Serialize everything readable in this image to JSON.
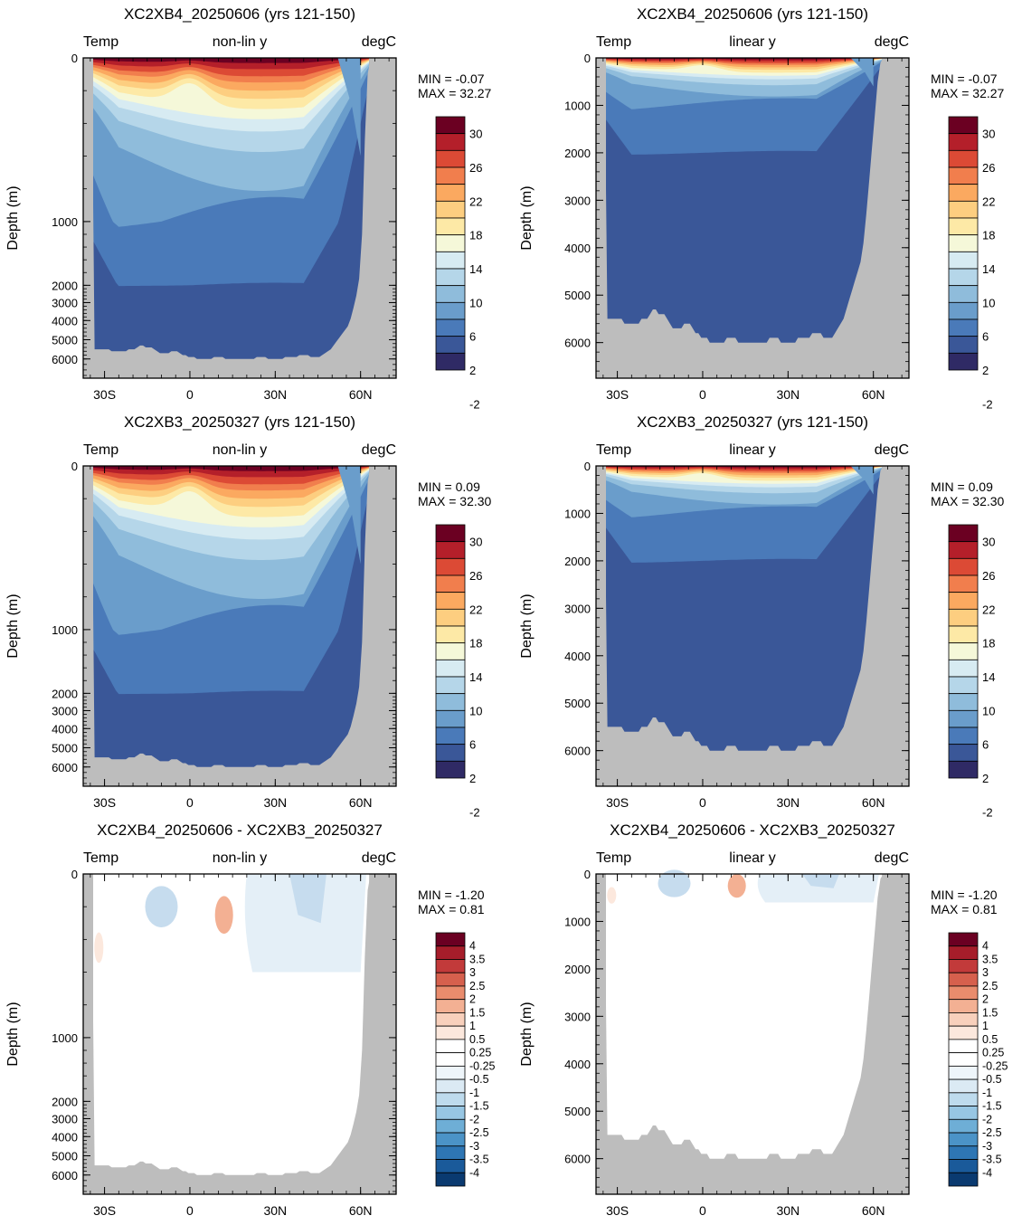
{
  "colors": {
    "land": "#bdbdbd",
    "temp_scale": [
      "#2f2a65",
      "#3a5798",
      "#4a7ab9",
      "#6a9dcb",
      "#8fbcdb",
      "#b5d6e9",
      "#d7ebf2",
      "#f5f8d9",
      "#fde9a6",
      "#fdce80",
      "#fba960",
      "#f17e4d",
      "#dc4a35",
      "#b41f2a",
      "#6b0022"
    ],
    "diff_scale": [
      "#0a3a70",
      "#1a5a9a",
      "#2e76b4",
      "#4b93c7",
      "#6eaed6",
      "#97c6e3",
      "#bedbed",
      "#dbeaf4",
      "#eef5fa",
      "#ffffff",
      "#ffffff",
      "#fce8dd",
      "#f8d0bc",
      "#f3b093",
      "#e98c6d",
      "#d6604d",
      "#c23a3a",
      "#a61d2a",
      "#6b0022"
    ]
  },
  "chart_data": [
    {
      "type": "contour",
      "title": "XC2XB4_20250606 (yrs 121-150)",
      "left_label": "Temp",
      "center_label": "non-lin y",
      "right_label": "degC",
      "ylabel": "Depth (m)",
      "y_scale": "non-linear",
      "y_ticks": [
        "0",
        "1000",
        "2000",
        "3000",
        "4000",
        "5000",
        "6000"
      ],
      "x_ticks": [
        "30S",
        "0",
        "30N",
        "60N"
      ],
      "min_text": "MIN =  -0.07",
      "max_text": "MAX =  32.27",
      "colorbar_labels": [
        "30",
        "26",
        "22",
        "18",
        "14",
        "10",
        "6",
        "2",
        "-2"
      ],
      "variable": "temperature",
      "min": -0.07,
      "max": 32.27
    },
    {
      "type": "contour",
      "title": "XC2XB4_20250606 (yrs 121-150)",
      "left_label": "Temp",
      "center_label": "linear y",
      "right_label": "degC",
      "ylabel": "Depth (m)",
      "y_scale": "linear",
      "y_ticks": [
        "0",
        "1000",
        "2000",
        "3000",
        "4000",
        "5000",
        "6000"
      ],
      "x_ticks": [
        "30S",
        "0",
        "30N",
        "60N"
      ],
      "min_text": "MIN =  -0.07",
      "max_text": "MAX =  32.27",
      "colorbar_labels": [
        "30",
        "26",
        "22",
        "18",
        "14",
        "10",
        "6",
        "2",
        "-2"
      ],
      "variable": "temperature",
      "min": -0.07,
      "max": 32.27
    },
    {
      "type": "contour",
      "title": "XC2XB3_20250327 (yrs 121-150)",
      "left_label": "Temp",
      "center_label": "non-lin y",
      "right_label": "degC",
      "ylabel": "Depth (m)",
      "y_scale": "non-linear",
      "y_ticks": [
        "0",
        "1000",
        "2000",
        "3000",
        "4000",
        "5000",
        "6000"
      ],
      "x_ticks": [
        "30S",
        "0",
        "30N",
        "60N"
      ],
      "min_text": "MIN =  0.09",
      "max_text": "MAX =  32.30",
      "colorbar_labels": [
        "30",
        "26",
        "22",
        "18",
        "14",
        "10",
        "6",
        "2",
        "-2"
      ],
      "variable": "temperature",
      "min": 0.09,
      "max": 32.3
    },
    {
      "type": "contour",
      "title": "XC2XB3_20250327 (yrs 121-150)",
      "left_label": "Temp",
      "center_label": "linear y",
      "right_label": "degC",
      "ylabel": "Depth (m)",
      "y_scale": "linear",
      "y_ticks": [
        "0",
        "1000",
        "2000",
        "3000",
        "4000",
        "5000",
        "6000"
      ],
      "x_ticks": [
        "30S",
        "0",
        "30N",
        "60N"
      ],
      "min_text": "MIN =  0.09",
      "max_text": "MAX =  32.30",
      "colorbar_labels": [
        "30",
        "26",
        "22",
        "18",
        "14",
        "10",
        "6",
        "2",
        "-2"
      ],
      "variable": "temperature",
      "min": 0.09,
      "max": 32.3
    },
    {
      "type": "contour",
      "title": "XC2XB4_20250606 - XC2XB3_20250327",
      "left_label": "Temp",
      "center_label": "non-lin y",
      "right_label": "degC",
      "ylabel": "Depth (m)",
      "y_scale": "non-linear",
      "y_ticks": [
        "0",
        "1000",
        "2000",
        "3000",
        "4000",
        "5000",
        "6000"
      ],
      "x_ticks": [
        "30S",
        "0",
        "30N",
        "60N"
      ],
      "min_text": "MIN =  -1.20",
      "max_text": "MAX =   0.81",
      "colorbar_labels": [
        "4",
        "3.5",
        "3",
        "2.5",
        "2",
        "1.5",
        "1",
        "0.5",
        "0.25",
        "-0.25",
        "-0.5",
        "-1",
        "-1.5",
        "-2",
        "-2.5",
        "-3",
        "-3.5",
        "-4"
      ],
      "variable": "difference",
      "min": -1.2,
      "max": 0.81
    },
    {
      "type": "contour",
      "title": "XC2XB4_20250606 - XC2XB3_20250327",
      "left_label": "Temp",
      "center_label": "linear y",
      "right_label": "degC",
      "ylabel": "Depth (m)",
      "y_scale": "linear",
      "y_ticks": [
        "0",
        "1000",
        "2000",
        "3000",
        "4000",
        "5000",
        "6000"
      ],
      "x_ticks": [
        "30S",
        "0",
        "30N",
        "60N"
      ],
      "min_text": "MIN =  -1.20",
      "max_text": "MAX =   0.81",
      "colorbar_labels": [
        "4",
        "3.5",
        "3",
        "2.5",
        "2",
        "1.5",
        "1",
        "0.5",
        "0.25",
        "-0.25",
        "-0.5",
        "-1",
        "-1.5",
        "-2",
        "-2.5",
        "-3",
        "-3.5",
        "-4"
      ],
      "variable": "difference",
      "min": -1.2,
      "max": 0.81
    }
  ]
}
